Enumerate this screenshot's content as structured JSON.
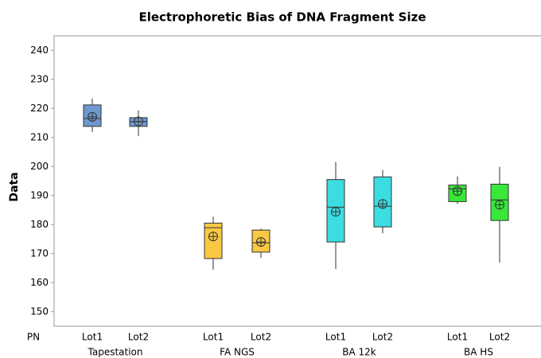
{
  "chart_data": {
    "type": "box",
    "title": "Electrophoretic Bias of DNA Fragment Size",
    "y_label": "Data",
    "x_row_label": "PN",
    "ylim": [
      145,
      245
    ],
    "yticks": [
      150,
      160,
      170,
      180,
      190,
      200,
      210,
      220,
      230,
      240
    ],
    "groups": [
      {
        "name": "Tapestation",
        "color": "#7098d0",
        "boxes": [
          {
            "label": "Lot1",
            "min": 211.9,
            "q1": 213.8,
            "median": 216.5,
            "q3": 221.2,
            "max": 223.4,
            "mean": 217.1
          },
          {
            "label": "Lot2",
            "min": 210.5,
            "q1": 213.8,
            "median": 215.4,
            "q3": 216.8,
            "max": 219.3,
            "mean": 215.5
          }
        ]
      },
      {
        "name": "FA NGS",
        "color": "#fbc844",
        "boxes": [
          {
            "label": "Lot1",
            "min": 164.5,
            "q1": 168.3,
            "median": 178.9,
            "q3": 180.5,
            "max": 182.7,
            "mean": 175.9
          },
          {
            "label": "Lot2",
            "min": 168.5,
            "q1": 170.5,
            "median": 173.7,
            "q3": 178.1,
            "max": 178.6,
            "mean": 174
          }
        ]
      },
      {
        "name": "BA 12k",
        "color": "#3bdde0",
        "boxes": [
          {
            "label": "Lot1",
            "min": 164.7,
            "q1": 174,
            "median": 186,
            "q3": 195.5,
            "max": 201.5,
            "mean": 184.4
          },
          {
            "label": "Lot2",
            "min": 177,
            "q1": 179.2,
            "median": 186.3,
            "q3": 196.4,
            "max": 198.8,
            "mean": 187.1
          }
        ]
      },
      {
        "name": "BA HS",
        "color": "#37e83a",
        "boxes": [
          {
            "label": "Lot1",
            "min": 187.1,
            "q1": 187.9,
            "median": 192.3,
            "q3": 193.6,
            "max": 196.6,
            "mean": 191.5
          },
          {
            "label": "Lot2",
            "min": 166.9,
            "q1": 181.4,
            "median": 188.5,
            "q3": 193.9,
            "max": 199.9,
            "mean": 186.8
          }
        ]
      }
    ]
  }
}
